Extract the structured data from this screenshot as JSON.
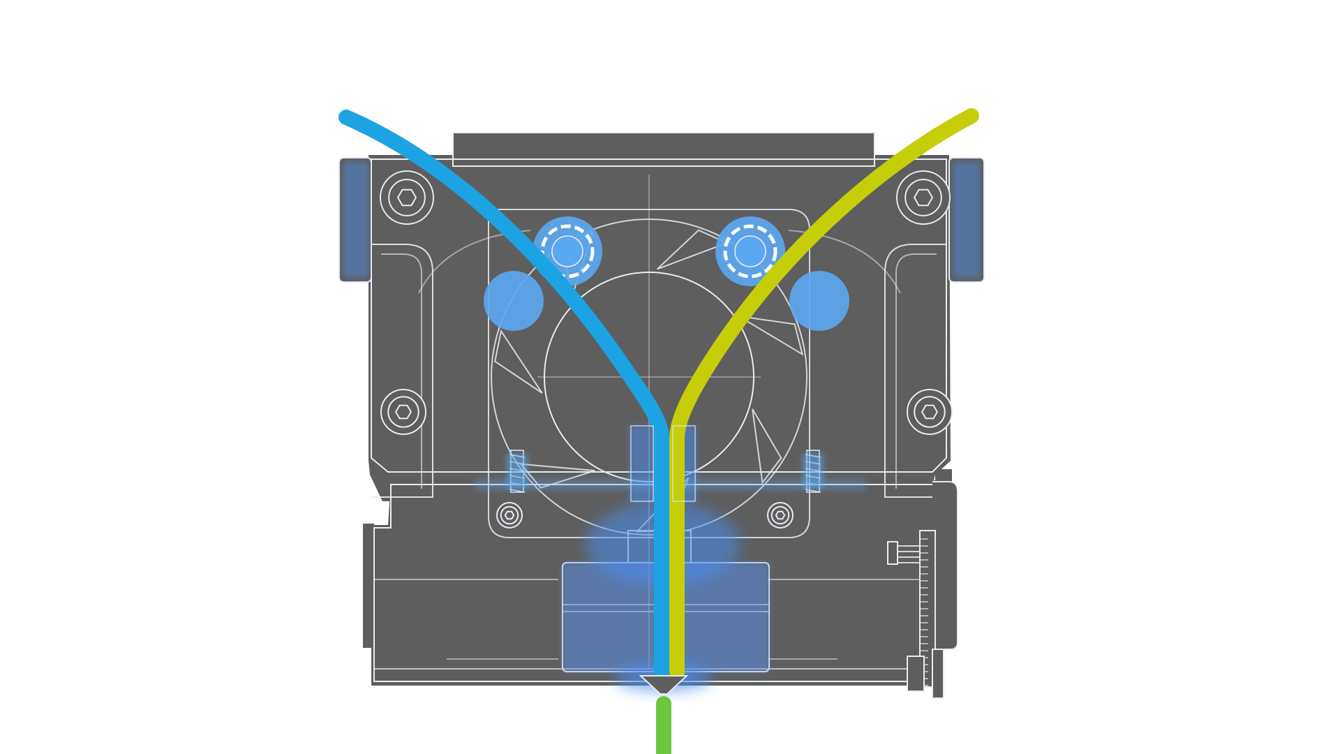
{
  "diagram": {
    "subject": "dual-filament-mixing-hotend",
    "colors": {
      "background": "#ffffff",
      "body": "#5e5e5e",
      "line": "#e9ecf2",
      "filament_left": "#1ca3e3",
      "filament_right": "#c5ce08",
      "filament_output": "#6cc63f",
      "glow": "#4a8ff0"
    },
    "icons": [
      "screw-icon",
      "bearing-icon",
      "fan-icon",
      "nozzle-icon",
      "pcb-icon"
    ]
  }
}
